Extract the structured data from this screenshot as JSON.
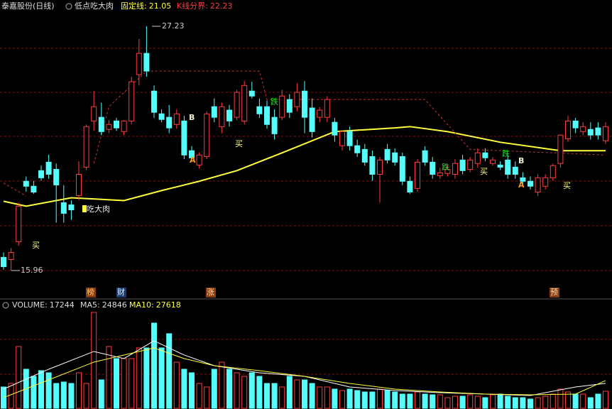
{
  "chart_data": [
    {
      "type": "candlestick",
      "title": "泰嘉股份(日线)",
      "indicator": "低点吃大肉",
      "fixed_line_label": "固定线:",
      "fixed_line": 21.05,
      "boundary_label": "K线分界:",
      "boundary": 22.23,
      "open": [
        16.57,
        16.47,
        17.29,
        20.08,
        19.85,
        20.57,
        20.96,
        20.63,
        19.09,
        18.99,
        19.42,
        20.73,
        22.86,
        23.03,
        22.47,
        22.86,
        22.37,
        22.86,
        25.0,
        25.98,
        24.24,
        23.19,
        23.03,
        22.7,
        22.86,
        21.49,
        20.83,
        21.22,
        23.52,
        22.6,
        23.36,
        23.03,
        22.86,
        24.24,
        23.52,
        23.52,
        23.03,
        23.03,
        23.85,
        23.52,
        24.24,
        23.46,
        23.03,
        23.03,
        22.8,
        21.72,
        22.37,
        21.72,
        21.55,
        21.22,
        20.4,
        21.55,
        21.39,
        21.22,
        20.08,
        19.75,
        21.49,
        20.96,
        20.34,
        20.44,
        20.4,
        21.06,
        20.63,
        20.9,
        21.39,
        20.9,
        20.83,
        21.06,
        20.73,
        20.24,
        20.08,
        19.58,
        19.85,
        20.24,
        20.9,
        22.04,
        22.86,
        22.37,
        22.47,
        22.54,
        21.95
      ],
      "high": [
        16.8,
        17.0,
        19.09,
        20.3,
        20.1,
        20.8,
        21.3,
        20.9,
        19.9,
        19.2,
        21.0,
        22.7,
        24.24,
        23.7,
        22.9,
        23.0,
        22.9,
        24.9,
        26.64,
        27.23,
        24.5,
        23.4,
        23.6,
        23.4,
        23.1,
        21.7,
        21.4,
        23.3,
        23.9,
        23.7,
        23.6,
        24.3,
        24.7,
        24.67,
        23.9,
        23.8,
        23.4,
        24.3,
        24.1,
        24.6,
        24.7,
        23.9,
        23.5,
        24.0,
        23.0,
        22.4,
        22.6,
        22.0,
        21.8,
        21.5,
        21.2,
        21.8,
        21.6,
        21.4,
        20.3,
        21.1,
        21.7,
        21.2,
        20.7,
        20.8,
        21.1,
        21.3,
        21.2,
        21.6,
        21.6,
        21.2,
        21.0,
        21.3,
        21.0,
        20.5,
        20.3,
        20.4,
        20.4,
        20.9,
        22.2,
        23.1,
        23.0,
        22.8,
        22.8,
        22.8,
        22.8
      ],
      "low": [
        16.0,
        15.96,
        17.1,
        19.6,
        19.5,
        20.1,
        20.2,
        18.17,
        18.17,
        18.3,
        19.2,
        20.6,
        22.4,
        22.2,
        22.3,
        22.4,
        22.2,
        22.7,
        24.5,
        24.9,
        23.0,
        22.8,
        22.3,
        22.5,
        21.1,
        21.0,
        20.67,
        21.1,
        22.8,
        22.3,
        22.6,
        22.9,
        22.7,
        23.9,
        23.0,
        22.5,
        22.0,
        22.9,
        23.0,
        23.3,
        22.3,
        22.1,
        22.8,
        22.8,
        21.9,
        21.5,
        21.5,
        21.2,
        20.8,
        20.1,
        19.09,
        20.9,
        20.8,
        19.9,
        19.5,
        19.6,
        20.8,
        20.2,
        20.2,
        20.3,
        20.2,
        20.4,
        20.5,
        20.7,
        21.0,
        20.8,
        20.6,
        20.2,
        20.2,
        19.9,
        19.7,
        19.4,
        19.7,
        20.1,
        20.7,
        21.9,
        22.3,
        22.2,
        22.0,
        22.0,
        21.8
      ],
      "close": [
        16.14,
        16.8,
        18.93,
        19.85,
        19.58,
        20.24,
        20.4,
        19.91,
        18.6,
        18.76,
        20.4,
        22.6,
        23.52,
        22.37,
        22.7,
        22.54,
        22.86,
        24.67,
        25.98,
        25.16,
        23.26,
        22.93,
        22.54,
        23.19,
        21.29,
        21.16,
        21.29,
        23.19,
        23.03,
        23.52,
        22.86,
        24.18,
        24.5,
        24.01,
        23.19,
        22.7,
        22.27,
        24.01,
        23.26,
        24.18,
        23.03,
        22.37,
        23.36,
        23.85,
        22.21,
        22.37,
        21.72,
        21.39,
        20.96,
        20.4,
        21.06,
        21.06,
        20.96,
        20.08,
        19.58,
        20.96,
        20.96,
        20.4,
        20.47,
        20.63,
        20.9,
        20.57,
        21.06,
        21.39,
        21.16,
        21.06,
        20.73,
        20.4,
        20.4,
        20.08,
        19.85,
        20.24,
        20.24,
        20.8,
        22.21,
        22.86,
        22.54,
        22.6,
        22.21,
        22.21,
        22.6
      ],
      "up_color": "#ff3c3c",
      "down_color": "#54fcfc",
      "ylim": [
        15.34,
        28.44
      ],
      "high_label": 27.23,
      "low_label": 15.96,
      "lines": [
        {
          "color": "#ffff3c",
          "x": [
            0,
            3,
            9,
            16,
            21,
            26,
            31,
            37,
            44,
            52,
            54,
            59,
            66,
            74,
            80
          ],
          "values": [
            19.16,
            18.93,
            19.32,
            19.19,
            19.65,
            20.08,
            20.57,
            21.39,
            22.37,
            22.54,
            22.6,
            22.37,
            21.88,
            21.49,
            21.49
          ]
        },
        {
          "color": "#c83232",
          "dashed": true,
          "x": [
            0,
            3,
            11,
            12,
            14,
            19,
            34,
            35,
            56,
            62,
            80
          ],
          "values": [
            20.0,
            19.4,
            null,
            20.9,
            23.52,
            25.16,
            25.16,
            23.85,
            23.85,
            21.55,
            21.29
          ]
        }
      ],
      "annotations": [
        "吃大肉",
        "买",
        "买",
        "买",
        "买",
        "跌",
        "跌",
        "跌",
        "A",
        "A",
        "B",
        "B",
        "榜",
        "财",
        "涨",
        "预"
      ]
    },
    {
      "type": "volume",
      "series_label": "VOLUME:",
      "last": 17244,
      "values": [
        21359,
        24804,
        60632,
        38584,
        31694,
        37206,
        35139,
        24804,
        26182,
        24804,
        35139,
        24804,
        93704,
        28249,
        60632,
        48919,
        48919,
        48919,
        59254,
        59254,
        83369,
        59254,
        73034,
        45474,
        38584,
        35139,
        24804,
        21359,
        38584,
        45474,
        38584,
        35139,
        31694,
        35139,
        31694,
        24804,
        24804,
        21359,
        31694,
        28249,
        28249,
        24804,
        21359,
        21359,
        19292,
        17914,
        19292,
        17914,
        16536,
        16536,
        19292,
        17914,
        16536,
        14469,
        14469,
        16536,
        14469,
        13780,
        13780,
        11024,
        12402,
        12402,
        13780,
        12402,
        11024,
        13780,
        14469,
        12402,
        11024,
        11024,
        9646,
        11024,
        12402,
        14469,
        19292,
        16536,
        14469,
        14469,
        11024,
        14469,
        17244
      ],
      "ylim": [
        0,
        104000
      ],
      "lines": [
        {
          "name": "MA5:",
          "color": "#ffffff",
          "last": 24846,
          "x": [
            0,
            6,
            12,
            16,
            20,
            24,
            28,
            34,
            40,
            46,
            52,
            58,
            64,
            70,
            76,
            80
          ],
          "values": [
            19292,
            38584,
            55809,
            48919,
            66144,
            52364,
            42029,
            35139,
            31694,
            21359,
            17914,
            15847,
            14469,
            13091,
            21359,
            24846
          ]
        },
        {
          "name": "MA10:",
          "color": "#ffff3c",
          "last": 27618,
          "x": [
            0,
            6,
            12,
            16,
            20,
            24,
            28,
            34,
            40,
            46,
            52,
            58,
            64,
            70,
            76,
            80
          ],
          "values": [
            11024,
            28249,
            45474,
            52364,
            59254,
            48919,
            42029,
            37206,
            31694,
            24804,
            19292,
            16536,
            14469,
            13780,
            14469,
            27618
          ]
        }
      ]
    }
  ]
}
